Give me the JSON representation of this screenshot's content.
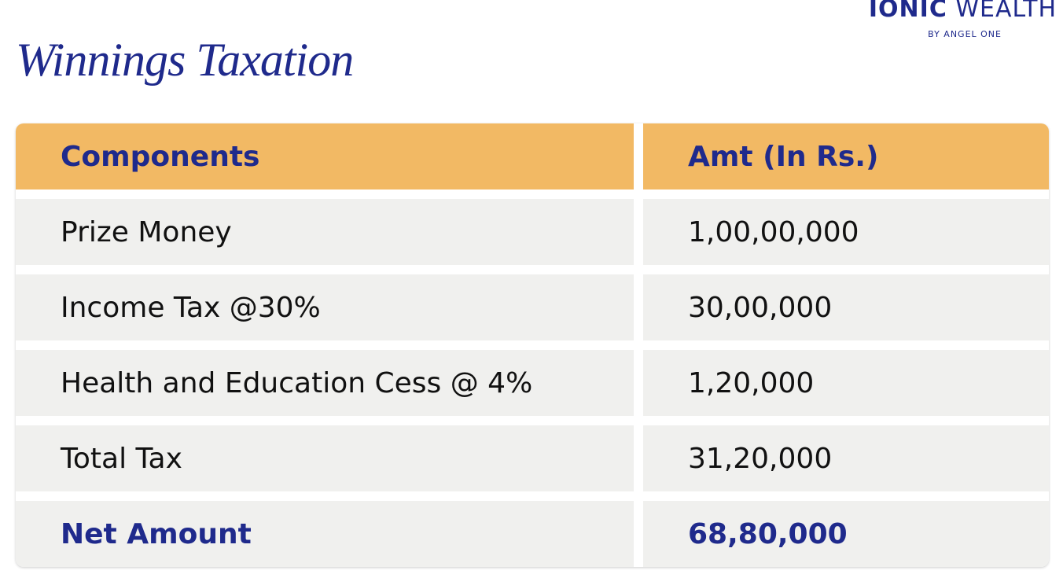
{
  "brand": {
    "name": "IONIC",
    "suffix": "WEALTH",
    "tagline": "BY ANGEL ONE"
  },
  "title": "Winnings Taxation",
  "table": {
    "header": [
      "Components",
      "Amt (In Rs.)"
    ],
    "rows": [
      [
        "Prize Money",
        "1,00,00,000"
      ],
      [
        "Income Tax @30%",
        "30,00,000"
      ],
      [
        "Health and Education Cess @ 4%",
        "1,20,000"
      ],
      [
        "Total Tax",
        "31,20,000"
      ],
      [
        "Net Amount",
        "68,80,000"
      ]
    ]
  }
}
